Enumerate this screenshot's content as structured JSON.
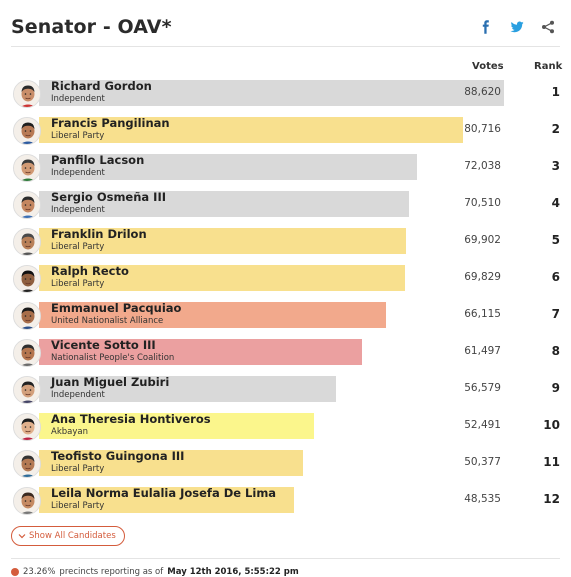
{
  "header": {
    "title": "Senator - OAV*",
    "share_icons": [
      "facebook-icon",
      "twitter-icon",
      "share-icon"
    ]
  },
  "columns": {
    "votes": "Votes",
    "rank": "Rank"
  },
  "colors": {
    "independent": "#d9d9d9",
    "liberal": "#f8e08e",
    "una": "#f2a98c",
    "npc": "#eba0a0",
    "akbayan": "#fbf68c",
    "accent": "#d45c3c"
  },
  "max_votes": 88620,
  "candidates": [
    {
      "name": "Richard Gordon",
      "party": "Independent",
      "votes": "88,620",
      "votes_value": 88620,
      "rank": "1",
      "color": "#d9d9d9"
    },
    {
      "name": "Francis Pangilinan",
      "party": "Liberal Party",
      "votes": "80,716",
      "votes_value": 80716,
      "rank": "2",
      "color": "#f8e08e"
    },
    {
      "name": "Panfilo Lacson",
      "party": "Independent",
      "votes": "72,038",
      "votes_value": 72038,
      "rank": "3",
      "color": "#d9d9d9"
    },
    {
      "name": "Sergio Osmeña III",
      "party": "Independent",
      "votes": "70,510",
      "votes_value": 70510,
      "rank": "4",
      "color": "#d9d9d9"
    },
    {
      "name": "Franklin Drilon",
      "party": "Liberal Party",
      "votes": "69,902",
      "votes_value": 69902,
      "rank": "5",
      "color": "#f8e08e"
    },
    {
      "name": "Ralph Recto",
      "party": "Liberal Party",
      "votes": "69,829",
      "votes_value": 69829,
      "rank": "6",
      "color": "#f8e08e"
    },
    {
      "name": "Emmanuel Pacquiao",
      "party": "United Nationalist Alliance",
      "votes": "66,115",
      "votes_value": 66115,
      "rank": "7",
      "color": "#f2a98c"
    },
    {
      "name": "Vicente Sotto III",
      "party": "Nationalist People's Coalition",
      "votes": "61,497",
      "votes_value": 61497,
      "rank": "8",
      "color": "#eba0a0"
    },
    {
      "name": "Juan Miguel Zubiri",
      "party": "Independent",
      "votes": "56,579",
      "votes_value": 56579,
      "rank": "9",
      "color": "#d9d9d9"
    },
    {
      "name": "Ana Theresia Hontiveros",
      "party": "Akbayan",
      "votes": "52,491",
      "votes_value": 52491,
      "rank": "10",
      "color": "#fbf68c"
    },
    {
      "name": "Teofisto Guingona III",
      "party": "Liberal Party",
      "votes": "50,377",
      "votes_value": 50377,
      "rank": "11",
      "color": "#f8e08e"
    },
    {
      "name": "Leila Norma Eulalia Josefa De Lima",
      "party": "Liberal Party",
      "votes": "48,535",
      "votes_value": 48535,
      "rank": "12",
      "color": "#f8e08e"
    }
  ],
  "show_all_label": "Show All Candidates",
  "footer": {
    "percent": "23.26%",
    "text": "precincts reporting as of",
    "datetime": "May 12th 2016, 5:55:22 pm"
  }
}
